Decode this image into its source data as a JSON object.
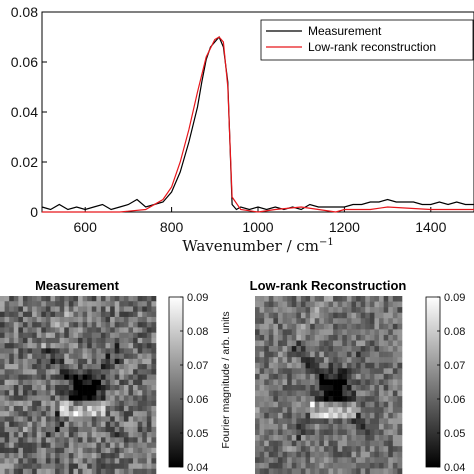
{
  "chart_data": [
    {
      "type": "line",
      "xlabel_text": "Wavenumber / cm",
      "xlabel_sup": "−1",
      "xlim": [
        500,
        1500
      ],
      "ylim": [
        0,
        0.08
      ],
      "xticks": [
        600,
        800,
        1000,
        1200,
        1400
      ],
      "yticks": [
        {
          "value": 0,
          "label": "0"
        },
        {
          "value": 0.02,
          "label": "0.02"
        },
        {
          "value": 0.04,
          "label": "0.04"
        },
        {
          "value": 0.06,
          "label": "0.06"
        },
        {
          "value": 0.08,
          "label": "0.08"
        }
      ],
      "legend_position": "top-right",
      "series": [
        {
          "name": "Measurement",
          "color": "#000000",
          "x": [
            500,
            520,
            540,
            560,
            580,
            600,
            620,
            640,
            660,
            680,
            700,
            720,
            740,
            760,
            780,
            800,
            820,
            840,
            860,
            870,
            880,
            890,
            900,
            910,
            920,
            930,
            940,
            950,
            960,
            980,
            1000,
            1020,
            1040,
            1060,
            1080,
            1100,
            1120,
            1140,
            1160,
            1180,
            1200,
            1220,
            1240,
            1260,
            1280,
            1300,
            1320,
            1340,
            1360,
            1380,
            1400,
            1420,
            1440,
            1460,
            1480,
            1500
          ],
          "y": [
            0.002,
            0.001,
            0.003,
            0.001,
            0.002,
            0.001,
            0.002,
            0.003,
            0.001,
            0.002,
            0.003,
            0.005,
            0.002,
            0.003,
            0.004,
            0.008,
            0.016,
            0.028,
            0.042,
            0.052,
            0.061,
            0.066,
            0.068,
            0.07,
            0.066,
            0.052,
            0.003,
            0.001,
            0.002,
            0.001,
            0.002,
            0.001,
            0.002,
            0.001,
            0.002,
            0.001,
            0.003,
            0.002,
            0.002,
            0.002,
            0.002,
            0.003,
            0.003,
            0.004,
            0.004,
            0.005,
            0.004,
            0.004,
            0.004,
            0.003,
            0.003,
            0.004,
            0.003,
            0.004,
            0.003,
            0.003
          ]
        },
        {
          "name": "Low-rank reconstruction",
          "color": "#e8161b",
          "x": [
            500,
            560,
            620,
            680,
            740,
            780,
            800,
            820,
            840,
            860,
            880,
            900,
            910,
            920,
            930,
            940,
            960,
            1000,
            1040,
            1100,
            1140,
            1180,
            1200,
            1260,
            1300,
            1400,
            1500
          ],
          "y": [
            0.0,
            0.0,
            0.0,
            0.0,
            0.001,
            0.005,
            0.01,
            0.02,
            0.033,
            0.048,
            0.062,
            0.069,
            0.07,
            0.068,
            0.05,
            0.006,
            0.001,
            0.0,
            0.001,
            0.002,
            0.001,
            0.0,
            0.001,
            0.001,
            0.002,
            0.001,
            0.001
          ]
        }
      ]
    },
    {
      "type": "heatmap",
      "title": "Measurement",
      "colorbar": {
        "min": 0.04,
        "max": 0.09,
        "ticks": [
          "0.04",
          "0.05",
          "0.06",
          "0.07",
          "0.08",
          "0.09"
        ]
      }
    },
    {
      "type": "heatmap",
      "title": "Low-rank Reconstruction",
      "colorbar": {
        "min": 0.04,
        "max": 0.09,
        "ticks": [
          "0.04",
          "0.05",
          "0.06",
          "0.07",
          "0.08",
          "0.09"
        ]
      }
    }
  ],
  "colorbar_ylabel": "Fourier magnitude / arb. units"
}
